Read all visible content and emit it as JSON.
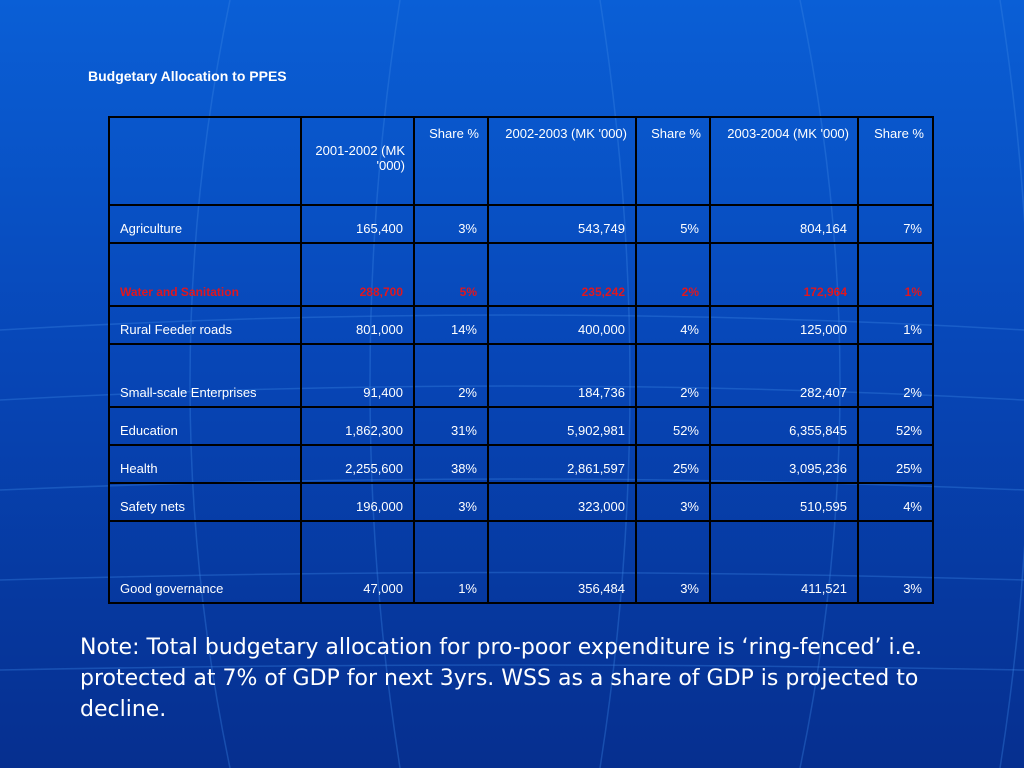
{
  "slide": {
    "title": "Budgetary Allocation to PPES",
    "note": "Note: Total budgetary allocation for pro-poor expenditure is ‘ring-fenced’ i.e. protected at 7% of GDP for next 3yrs. WSS as a share of GDP is projected to decline."
  },
  "table": {
    "headers": [
      "",
      "2001-2002 (MK '000)",
      "Share %",
      "2002-2003 (MK '000)",
      "Share %",
      "2003-2004 (MK '000)",
      "Share %"
    ],
    "rows": [
      {
        "sector": "Agriculture",
        "v2001": "165,400",
        "s2001": "3%",
        "v2002": "543,749",
        "s2002": "5%",
        "v2003": "804,164",
        "s2003": "7%"
      },
      {
        "sector": "Water and Sanitation",
        "v2001": "288,700",
        "s2001": "5%",
        "v2002": "235,242",
        "s2002": "2%",
        "v2003": "172,964",
        "s2003": "1%"
      },
      {
        "sector": "Rural Feeder roads",
        "v2001": "801,000",
        "s2001": "14%",
        "v2002": "400,000",
        "s2002": "4%",
        "v2003": "125,000",
        "s2003": "1%"
      },
      {
        "sector": "Small-scale Enterprises",
        "v2001": "91,400",
        "s2001": "2%",
        "v2002": "184,736",
        "s2002": "2%",
        "v2003": "282,407",
        "s2003": "2%"
      },
      {
        "sector": "Education",
        "v2001": "1,862,300",
        "s2001": "31%",
        "v2002": "5,902,981",
        "s2002": "52%",
        "v2003": "6,355,845",
        "s2003": "52%"
      },
      {
        "sector": "Health",
        "v2001": "2,255,600",
        "s2001": "38%",
        "v2002": "2,861,597",
        "s2002": "25%",
        "v2003": "3,095,236",
        "s2003": "25%"
      },
      {
        "sector": "Safety nets",
        "v2001": "196,000",
        "s2001": "3%",
        "v2002": "323,000",
        "s2002": "3%",
        "v2003": "510,595",
        "s2003": "4%"
      },
      {
        "sector": "Good governance",
        "v2001": "47,000",
        "s2001": "1%",
        "v2002": "356,484",
        "s2002": "3%",
        "v2003": "411,521",
        "s2003": "3%"
      }
    ]
  },
  "colors": {
    "background_top": "#0a5fd6",
    "background_bottom": "#062f8f",
    "highlight_text": "#e0161f",
    "text": "#ffffff"
  }
}
